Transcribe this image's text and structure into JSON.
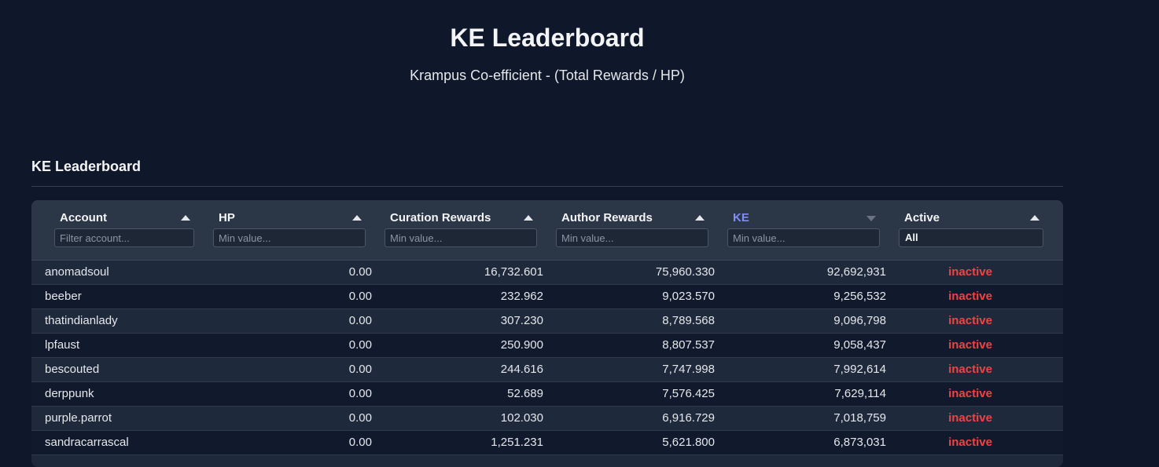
{
  "page": {
    "title": "KE Leaderboard",
    "subtitle": "Krampus Co-efficient - (Total Rewards / HP)"
  },
  "section": {
    "title": "KE Leaderboard"
  },
  "colors": {
    "background": "#0f172a",
    "accent": "#818cf8",
    "inactive": "#ef4444"
  },
  "table": {
    "columns": [
      {
        "key": "account",
        "label": "Account",
        "sort": "asc",
        "filter_placeholder": "Filter account..."
      },
      {
        "key": "hp",
        "label": "HP",
        "sort": "asc",
        "filter_placeholder": "Min value..."
      },
      {
        "key": "curation",
        "label": "Curation Rewards",
        "sort": "asc",
        "filter_placeholder": "Min value..."
      },
      {
        "key": "author",
        "label": "Author Rewards",
        "sort": "asc",
        "filter_placeholder": "Min value..."
      },
      {
        "key": "ke",
        "label": "KE",
        "sort": "desc",
        "filter_placeholder": "Min value..."
      },
      {
        "key": "active",
        "label": "Active",
        "sort": "asc",
        "filter_value": "All"
      }
    ],
    "rows": [
      {
        "account": "anomadsoul",
        "hp": "0.00",
        "curation": "16,732.601",
        "author": "75,960.330",
        "ke": "92,692,931",
        "active": "inactive"
      },
      {
        "account": "beeber",
        "hp": "0.00",
        "curation": "232.962",
        "author": "9,023.570",
        "ke": "9,256,532",
        "active": "inactive"
      },
      {
        "account": "thatindianlady",
        "hp": "0.00",
        "curation": "307.230",
        "author": "8,789.568",
        "ke": "9,096,798",
        "active": "inactive"
      },
      {
        "account": "lpfaust",
        "hp": "0.00",
        "curation": "250.900",
        "author": "8,807.537",
        "ke": "9,058,437",
        "active": "inactive"
      },
      {
        "account": "bescouted",
        "hp": "0.00",
        "curation": "244.616",
        "author": "7,747.998",
        "ke": "7,992,614",
        "active": "inactive"
      },
      {
        "account": "derppunk",
        "hp": "0.00",
        "curation": "52.689",
        "author": "7,576.425",
        "ke": "7,629,114",
        "active": "inactive"
      },
      {
        "account": "purple.parrot",
        "hp": "0.00",
        "curation": "102.030",
        "author": "6,916.729",
        "ke": "7,018,759",
        "active": "inactive"
      },
      {
        "account": "sandracarrascal",
        "hp": "0.00",
        "curation": "1,251.231",
        "author": "5,621.800",
        "ke": "6,873,031",
        "active": "inactive"
      }
    ]
  }
}
